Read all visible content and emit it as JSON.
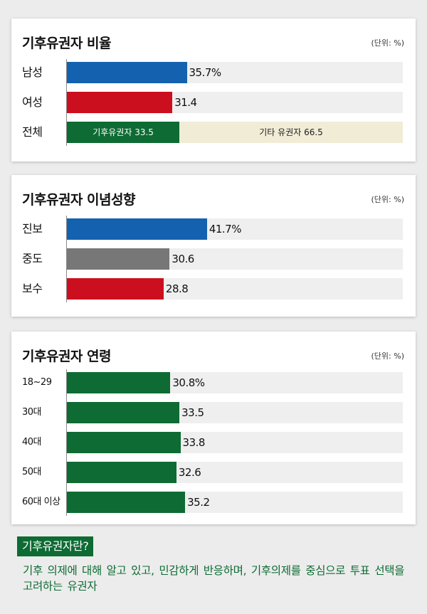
{
  "colors": {
    "blue": "#1461b0",
    "red": "#cc0f1e",
    "gray": "#777777",
    "green": "#0d6b33",
    "beige": "#f0ecd6",
    "track": "#efefef"
  },
  "unit_label": "(단위: %)",
  "chart_data": [
    {
      "type": "bar",
      "title": "기후유권자 비율",
      "unit": "(단위: %)",
      "xlim": [
        0,
        100
      ],
      "rows": [
        {
          "label": "남성",
          "value": 35.7,
          "value_label": "35.7%",
          "color": "blue"
        },
        {
          "label": "여성",
          "value": 31.4,
          "value_label": "31.4",
          "color": "red"
        },
        {
          "label": "전체",
          "stacked": true,
          "segments": [
            {
              "label": "기후유권자 33.5",
              "value": 33.5,
              "color": "green"
            },
            {
              "label": "기타 유권자 66.5",
              "value": 66.5,
              "color": "beige"
            }
          ]
        }
      ]
    },
    {
      "type": "bar",
      "title": "기후유권자 이념성향",
      "unit": "(단위: %)",
      "xlim": [
        0,
        100
      ],
      "rows": [
        {
          "label": "진보",
          "value": 41.7,
          "value_label": "41.7%",
          "color": "blue"
        },
        {
          "label": "중도",
          "value": 30.6,
          "value_label": "30.6",
          "color": "gray"
        },
        {
          "label": "보수",
          "value": 28.8,
          "value_label": "28.8",
          "color": "red"
        }
      ]
    },
    {
      "type": "bar",
      "title": "기후유권자 연령",
      "unit": "(단위: %)",
      "xlim": [
        0,
        100
      ],
      "rows": [
        {
          "label": "18~29",
          "value": 30.8,
          "value_label": "30.8%",
          "color": "green"
        },
        {
          "label": "30대",
          "value": 33.5,
          "value_label": "33.5",
          "color": "green"
        },
        {
          "label": "40대",
          "value": 33.8,
          "value_label": "33.8",
          "color": "green"
        },
        {
          "label": "50대",
          "value": 32.6,
          "value_label": "32.6",
          "color": "green"
        },
        {
          "label": "60대 이상",
          "value": 35.2,
          "value_label": "35.2",
          "color": "green"
        }
      ]
    }
  ],
  "definition": {
    "tag": "기후유권자란?",
    "text": "기후 의제에 대해 알고 있고, 민감하게 반응하며, 기후의제를 중심으로 투표 선택을 고려하는 유권자"
  }
}
